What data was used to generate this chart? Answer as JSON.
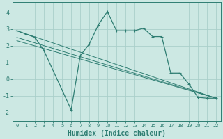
{
  "xlabel": "Humidex (Indice chaleur)",
  "background_color": "#cce8e3",
  "grid_color": "#aacfca",
  "line_color": "#2e7d72",
  "series_main": {
    "x": [
      0,
      1,
      2,
      3,
      6,
      7,
      8,
      9,
      10,
      11,
      12,
      13,
      14,
      15,
      16,
      17,
      18,
      19,
      20,
      21,
      22
    ],
    "y": [
      2.9,
      2.7,
      2.5,
      1.7,
      -1.85,
      1.4,
      2.1,
      3.25,
      4.05,
      2.9,
      2.9,
      2.9,
      3.05,
      2.55,
      2.55,
      0.35,
      0.35,
      -0.3,
      -1.1,
      -1.15,
      -1.15
    ]
  },
  "series_lines": [
    {
      "x": [
        0,
        22
      ],
      "y": [
        2.9,
        -1.15
      ]
    },
    {
      "x": [
        0,
        22
      ],
      "y": [
        2.5,
        -1.15
      ]
    },
    {
      "x": [
        0,
        22
      ],
      "y": [
        2.3,
        -1.15
      ]
    }
  ],
  "xlim": [
    -0.5,
    22.5
  ],
  "ylim": [
    -2.5,
    4.6
  ],
  "yticks": [
    -2,
    -1,
    0,
    1,
    2,
    3,
    4
  ],
  "xticks": [
    0,
    1,
    2,
    3,
    4,
    5,
    6,
    7,
    8,
    9,
    10,
    11,
    12,
    13,
    14,
    15,
    16,
    17,
    18,
    19,
    20,
    21,
    22
  ],
  "xlabel_fontsize": 7,
  "tick_fontsize": 5,
  "ytick_fontsize": 6,
  "linewidth_main": 0.9,
  "linewidth_reg": 0.7,
  "marker_size": 3,
  "marker_ew": 0.8
}
